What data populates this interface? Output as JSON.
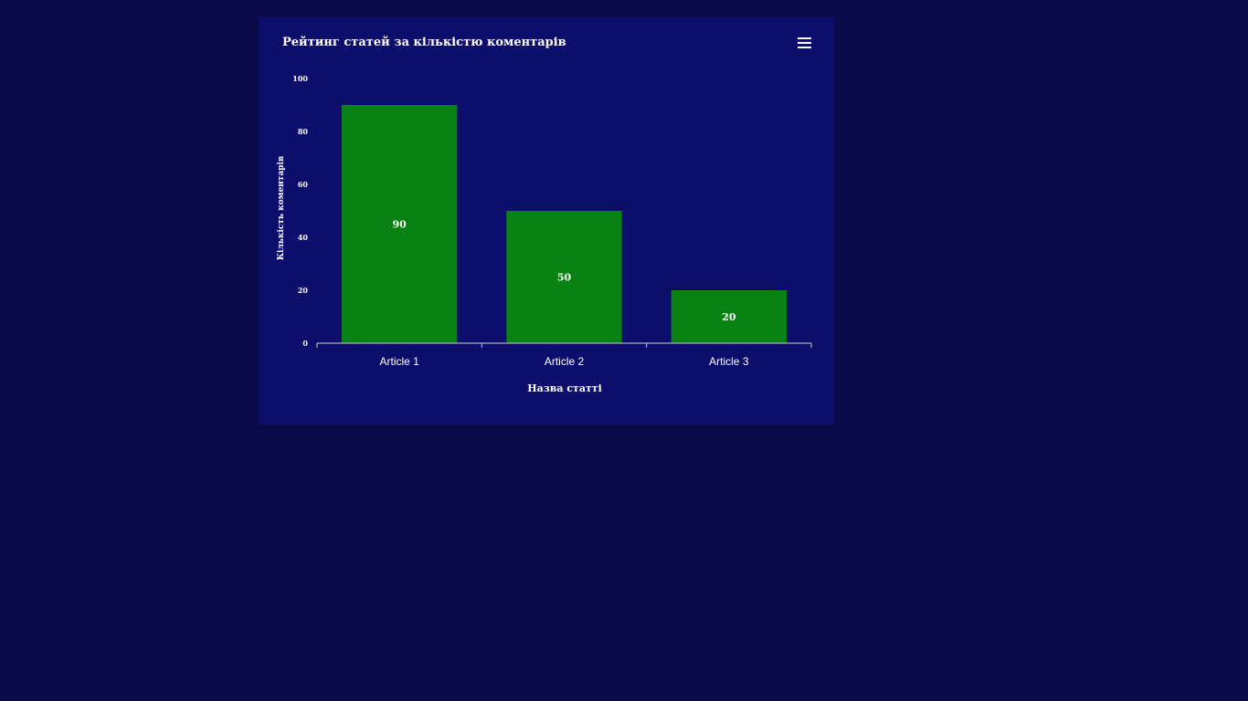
{
  "menu": {
    "icon": "hamburger-menu-icon"
  },
  "colors": {
    "page_background": "#0a094a",
    "chart_background": "#0d0e6b",
    "bar": "#078213",
    "text": "#ffffff",
    "axis": "#cccccc"
  },
  "chart_data": {
    "type": "bar",
    "title": "Рейтинг статей за кількістю коментарів",
    "xlabel": "Назва статті",
    "ylabel": "Кількість коментарів",
    "categories": [
      "Article 1",
      "Article 2",
      "Article 3"
    ],
    "values": [
      90,
      50,
      20
    ],
    "ylim": [
      0,
      100
    ],
    "yticks": [
      0,
      20,
      40,
      60,
      80,
      100
    ],
    "data_labels": true,
    "grid": false,
    "legend": "none"
  }
}
